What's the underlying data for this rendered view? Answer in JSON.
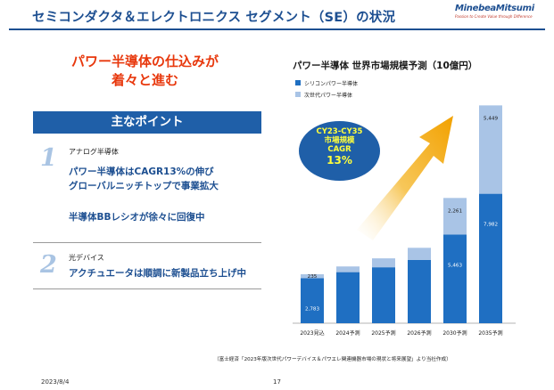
{
  "header": {
    "title": "セミコンダクタ＆エレクトロニクス セグメント（SE）の状況",
    "logo_name": "MinebeaMitsumi",
    "logo_tagline": "Passion to Create Value through Difference"
  },
  "left": {
    "headline_line1": "パワー半導体の仕込みが",
    "headline_line2": "着々と進む",
    "points_heading": "主なポイント",
    "sections": [
      {
        "number": "1",
        "category": "アナログ半導体",
        "points": [
          "パワー半導体はCAGR13%の伸び",
          "グローバルニッチトップで事業拡大",
          "半導体BBレシオが徐々に回復中"
        ]
      },
      {
        "number": "2",
        "category": "光デバイス",
        "points": [
          "アクチュエータは順調に新製品立ち上げ中"
        ]
      }
    ]
  },
  "bubble": {
    "line1": "CY23-CY35",
    "line2": "市場規模",
    "line3": "CAGR",
    "line4": "13%"
  },
  "chart_data": {
    "type": "bar",
    "stacked": true,
    "title": "パワー半導体 世界市場規模予測（10億円）",
    "categories": [
      "2023見込",
      "2024予測",
      "2025予測",
      "2026予測",
      "2030予測",
      "2035予測"
    ],
    "series": [
      {
        "name": "シリコンパワー半導体",
        "color": "#1f6fc2",
        "values": [
          2783,
          3150,
          3450,
          3900,
          5463,
          7982
        ],
        "labels": [
          "2,783",
          "",
          "",
          "",
          "5,463",
          "7,982"
        ]
      },
      {
        "name": "次世代パワー半導体",
        "color": "#a9c4e6",
        "values": [
          235,
          350,
          550,
          750,
          2261,
          5449
        ],
        "labels": [
          "235",
          "",
          "",
          "",
          "2,261",
          "5,449"
        ]
      }
    ],
    "ylim": [
      0,
      14000
    ],
    "grid": false,
    "legend": "top-left"
  },
  "source_note": "（富士経済「2023年版次世代パワーデバイス＆パワエレ関連機器市場の現状と将来展望」より当社作成）",
  "footer": {
    "date": "2023/8/4",
    "page": "17"
  },
  "colors": {
    "brand_blue": "#1d4f91",
    "accent_red": "#e8380d",
    "bubble_text": "#ffff3c"
  }
}
